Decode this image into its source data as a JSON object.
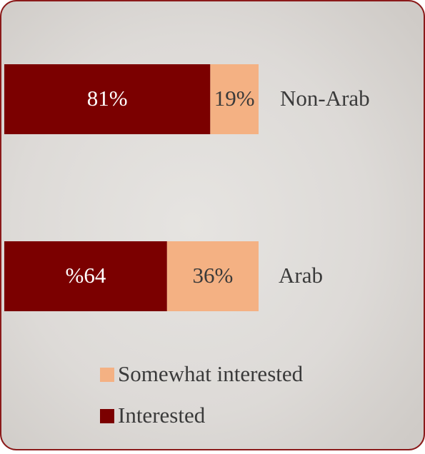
{
  "chart_data": {
    "type": "stacked-bar-horizontal",
    "categories": [
      "Non-Arab",
      "Arab"
    ],
    "series": [
      {
        "name": "Interested",
        "color": "#7b0000",
        "values": [
          81,
          64
        ],
        "value_labels": [
          "81%",
          "%64"
        ],
        "label_color": "#ffffff"
      },
      {
        "name": "Somewhat interested",
        "color": "#f4b183",
        "values": [
          19,
          36
        ],
        "value_labels": [
          "19%",
          "36%"
        ],
        "label_color": "#3a3a3a"
      }
    ]
  }
}
